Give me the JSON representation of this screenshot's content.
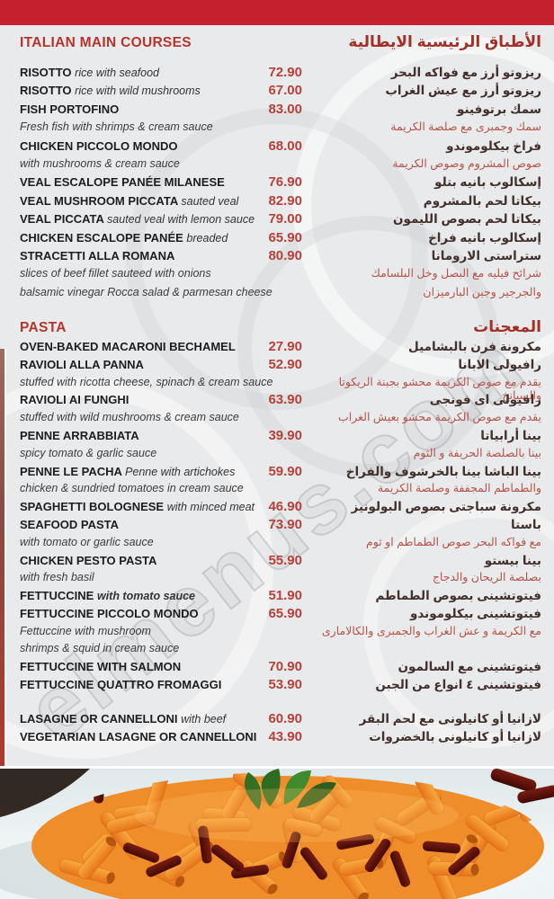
{
  "watermark": "elmenus.com",
  "colors": {
    "top_bar": "#c5202e",
    "section_title": "#b5342c",
    "price": "#b6403a",
    "arabic_desc": "#b5544a",
    "background": "#e9eaeb"
  },
  "sections": [
    {
      "title_en": "ITALIAN MAIN COURSES",
      "title_ar": "الأطباق الرئيسية الايطالية",
      "rows": [
        {
          "type": "item",
          "name": "RISOTTO",
          "note": "rice with seafood",
          "price": "72.90",
          "ar": "ريزوتو أرز مع فواكه البحر"
        },
        {
          "type": "item",
          "name": "RISOTTO",
          "note": "rice with wild mushrooms",
          "price": "67.00",
          "ar": "ريزوتو أرز مع عيش الغراب"
        },
        {
          "type": "item",
          "name": "FISH PORTOFINO",
          "note": "",
          "price": "83.00",
          "ar": "سمك برتوفينو"
        },
        {
          "type": "desc",
          "en": "Fresh fish with shrimps & cream sauce",
          "ar": "سمك وجمبرى مع صلصة الكريمة"
        },
        {
          "type": "item",
          "name": "CHICKEN PICCOLO MONDO",
          "note": "",
          "price": "68.00",
          "ar": "فراخ بيكلوموندو"
        },
        {
          "type": "desc",
          "en": "with mushrooms & cream sauce",
          "ar": "صوص المشروم وصوص الكريمة"
        },
        {
          "type": "item",
          "name": "VEAL ESCALOPE PANÉE MILANESE",
          "note": "",
          "price": "76.90",
          "ar": "إسكالوب بانيه بتلو"
        },
        {
          "type": "item",
          "name": "VEAL MUSHROOM PICCATA",
          "note": "sauted veal",
          "price": "82.90",
          "ar": "بيكاتا لحم بالمشروم"
        },
        {
          "type": "item",
          "name": "VEAL PICCATA",
          "note": "sauted veal with lemon sauce",
          "price": "79.00",
          "ar": "بيكاتا لحم بصوص الليمون"
        },
        {
          "type": "item",
          "name": "CHICKEN ESCALOPE PANÉE",
          "note": "breaded",
          "price": "65.90",
          "ar": "إسكالوب بانيه فراخ"
        },
        {
          "type": "item",
          "name": "STRACETTI ALLA ROMANA",
          "note": "",
          "price": "80.90",
          "ar": "ستراستى الارومانا"
        },
        {
          "type": "desc",
          "en": "slices of beef fillet sauteed with onions",
          "ar": "شرائح فيليه مع البصل وخل البلسامك"
        },
        {
          "type": "desc",
          "en": "balsamic vinegar Rocca salad & parmesan cheese",
          "ar": "والجرجير وجبن البارميزان"
        }
      ]
    },
    {
      "title_en": "PASTA",
      "title_ar": "المعجنات",
      "rows": [
        {
          "type": "item",
          "name": "OVEN-BAKED MACARONI BECHAMEL",
          "note": "",
          "price": "27.90",
          "ar": "مكرونة فرن بالبشاميل"
        },
        {
          "type": "item",
          "name": "RAVIOLI ALLA PANNA",
          "note": "",
          "price": "52.90",
          "ar": "رافيولى الابانا"
        },
        {
          "type": "desc",
          "en": "stuffed with ricotta cheese, spinach & cream sauce",
          "ar": "يقدم مع صوص الكريمة محشو بجبنة الريكوتا والسبانخ"
        },
        {
          "type": "item",
          "name": "RAVIOLI AI FUNGHI",
          "note": "",
          "price": "63.90",
          "ar": "رافيولى اى فونجى"
        },
        {
          "type": "desc",
          "en": "stuffed with wild mushrooms & cream sauce",
          "ar": "يقدم مع صوص الكريمة محشو بعيش الغراب"
        },
        {
          "type": "item",
          "name": "PENNE ARRABBIATA",
          "note": "",
          "price": "39.90",
          "ar": "بينا أرابياتا"
        },
        {
          "type": "desc",
          "en": "spicy tomato & garlic sauce",
          "ar": "بينا بالصلصة الحريفة و الثوم"
        },
        {
          "type": "item",
          "name": "PENNE LE PACHA",
          "note": "Penne with artichokes",
          "price": "59.90",
          "ar": "بينا الباشا بينا بالخرشوف والفراخ"
        },
        {
          "type": "desc",
          "en": "chicken & sundried tomatoes in cream sauce",
          "ar": "والطماطم المجففة وصلصة الكريمة"
        },
        {
          "type": "item",
          "name": "SPAGHETTI BOLOGNESE",
          "note": "with minced meat",
          "price": "46.90",
          "ar": "مكرونة سباجتى بصوص البولونيز"
        },
        {
          "type": "item",
          "name": "SEAFOOD PASTA",
          "note": "",
          "price": "73.90",
          "ar": "باستا"
        },
        {
          "type": "desc",
          "en": "with tomato or garlic sauce",
          "ar": "مع فواكه البحر صوص الطماطم او ثوم"
        },
        {
          "type": "item",
          "name": "CHICKEN PESTO PASTA",
          "note": "",
          "price": "55.90",
          "ar": "بينا بيستو"
        },
        {
          "type": "desc",
          "en": "with fresh basil",
          "ar": "بصلصة الريحان والدجاج"
        },
        {
          "type": "item",
          "name": "FETTUCCINE",
          "note": "with tomato sauce",
          "note_bold": true,
          "price": "51.90",
          "ar": "فيتوتشينى بصوص الطماطم"
        },
        {
          "type": "item",
          "name": "FETTUCCINE PICCOLO MONDO",
          "note": "",
          "price": "65.90",
          "ar": "فيتوتشينى بيكلوموندو"
        },
        {
          "type": "desc",
          "en": "Fettuccine with mushroom",
          "ar": "مع الكريمة و عش الغراب والجمبرى والكالامارى"
        },
        {
          "type": "desc",
          "en": " shrimps & squid in cream sauce",
          "ar": ""
        },
        {
          "type": "item",
          "name": "FETTUCCINE WITH SALMON",
          "note": "",
          "price": "70.90",
          "ar": "فيتوتشينى مع السالمون"
        },
        {
          "type": "item",
          "name": "FETTUCCINE QUATTRO FROMAGGI",
          "note": "",
          "price": "53.90",
          "ar": "فيتوتشينى ٤ انواع من الجبن"
        },
        {
          "type": "spacer"
        },
        {
          "type": "item",
          "name": "LASAGNE OR CANNELLONI",
          "note": "with beef",
          "price": "60.90",
          "ar": "لازانيا أو كانيلونى مع لحم البقر"
        },
        {
          "type": "item",
          "name": "VEGETARIAN LASAGNE OR CANNELLONI",
          "note": "",
          "price": "43.90",
          "ar": "لازانيا أو كانيلونى بالخضروات"
        }
      ]
    }
  ]
}
